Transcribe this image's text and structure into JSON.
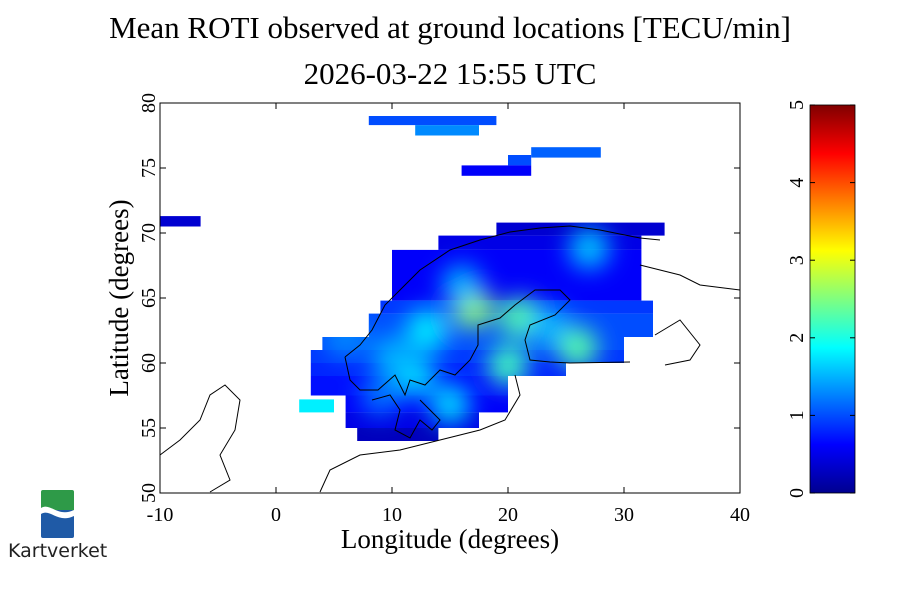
{
  "title_line1": "Mean ROTI observed at ground locations [TECU/min]",
  "title_line2": "2026-03-22 15:55 UTC",
  "logo": {
    "text": "Kartverket"
  },
  "chart_data": {
    "type": "heatmap",
    "title": "Mean ROTI observed at ground locations [TECU/min]",
    "subtitle": "2026-03-22 15:55 UTC",
    "xlabel": "Longitude (degrees)",
    "ylabel": "Latitude (degrees)",
    "xlim": [
      -10,
      40
    ],
    "ylim": [
      50,
      80
    ],
    "xticks": [
      "-10",
      "0",
      "10",
      "20",
      "30",
      "40"
    ],
    "yticks": [
      "50",
      "55",
      "60",
      "65",
      "70",
      "75",
      "80"
    ],
    "colorbar": {
      "range": [
        0,
        5
      ],
      "ticks": [
        "0",
        "1",
        "2",
        "3",
        "4",
        "5"
      ],
      "colormap": "jet"
    },
    "cells": [
      [
        19,
        33.5,
        69.8,
        70.8,
        0.4
      ],
      [
        14,
        31.5,
        68.7,
        69.8,
        0.5
      ],
      [
        10,
        31.5,
        64.8,
        68.7,
        0.6
      ],
      [
        9,
        32.5,
        63.8,
        64.8,
        0.9
      ],
      [
        8,
        32.5,
        62,
        63.8,
        1.0
      ],
      [
        4,
        30,
        61,
        62,
        1.0
      ],
      [
        3,
        30,
        60,
        61,
        0.9
      ],
      [
        3,
        25,
        59,
        60,
        0.8
      ],
      [
        3,
        20,
        57.5,
        59,
        0.7
      ],
      [
        6,
        20,
        56.2,
        57.5,
        0.6
      ],
      [
        2,
        5,
        56.2,
        57.2,
        1.8
      ],
      [
        6,
        17.5,
        55,
        56.2,
        0.5
      ],
      [
        7,
        14,
        54,
        55,
        0.3
      ],
      [
        -10,
        -6.5,
        70.5,
        71.3,
        0.4
      ],
      [
        8,
        19,
        78.3,
        79,
        1.0
      ],
      [
        12,
        17.5,
        77.5,
        78.3,
        1.3
      ],
      [
        22,
        28,
        75.8,
        76.6,
        1.1
      ],
      [
        20,
        22,
        75.2,
        76,
        1.0
      ],
      [
        16,
        22,
        74.4,
        75.2,
        0.6
      ]
    ],
    "hotspots": [
      [
        17,
        64.2,
        2.6
      ],
      [
        21,
        63.5,
        2.3
      ],
      [
        26,
        61.2,
        2.3
      ],
      [
        20,
        59.8,
        2.2
      ],
      [
        13,
        62.5,
        1.8
      ],
      [
        12,
        59,
        1.7
      ],
      [
        15,
        56.8,
        1.7
      ],
      [
        23.5,
        62.8,
        1.5
      ],
      [
        16,
        66,
        1.5
      ],
      [
        27,
        68.8,
        1.6
      ],
      [
        6,
        62,
        1.3
      ],
      [
        10,
        60.5,
        1.5
      ],
      [
        9,
        57.5,
        1.2
      ]
    ]
  }
}
